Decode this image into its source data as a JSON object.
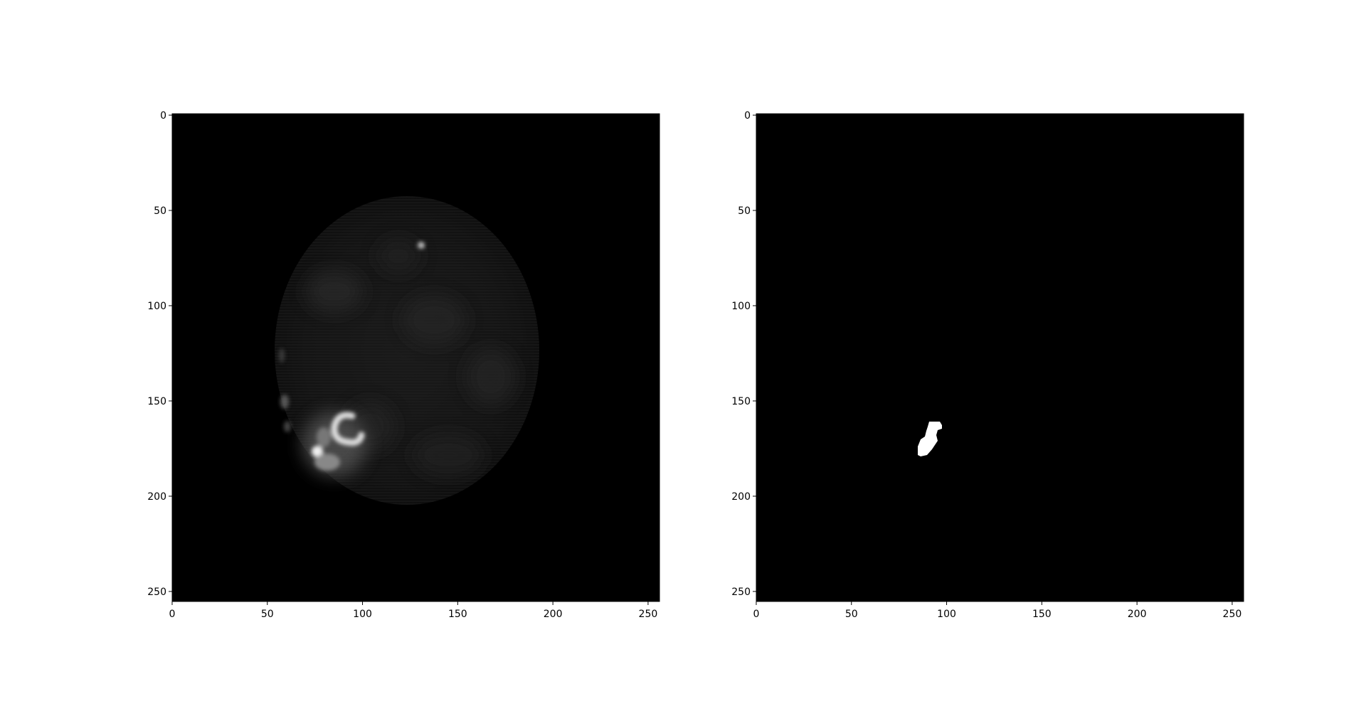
{
  "panels": [
    {
      "name": "left-image-panel",
      "image": "grayscale-scan-slice",
      "xlim": [
        0,
        256
      ],
      "ylim": [
        256,
        0
      ],
      "xticks": [
        {
          "value": 0,
          "label": "0"
        },
        {
          "value": 50,
          "label": "50"
        },
        {
          "value": 100,
          "label": "100"
        },
        {
          "value": 150,
          "label": "150"
        },
        {
          "value": 200,
          "label": "200"
        },
        {
          "value": 250,
          "label": "250"
        }
      ],
      "yticks": [
        {
          "value": 0,
          "label": "0"
        },
        {
          "value": 50,
          "label": "50"
        },
        {
          "value": 100,
          "label": "100"
        },
        {
          "value": 150,
          "label": "150"
        },
        {
          "value": 200,
          "label": "200"
        },
        {
          "value": 250,
          "label": "250"
        }
      ]
    },
    {
      "name": "right-mask-panel",
      "image": "binary-segmentation-mask",
      "xlim": [
        0,
        256
      ],
      "ylim": [
        256,
        0
      ],
      "xticks": [
        {
          "value": 0,
          "label": "0"
        },
        {
          "value": 50,
          "label": "50"
        },
        {
          "value": 100,
          "label": "100"
        },
        {
          "value": 150,
          "label": "150"
        },
        {
          "value": 200,
          "label": "200"
        },
        {
          "value": 250,
          "label": "250"
        }
      ],
      "yticks": [
        {
          "value": 0,
          "label": "0"
        },
        {
          "value": 50,
          "label": "50"
        },
        {
          "value": 100,
          "label": "100"
        },
        {
          "value": 150,
          "label": "150"
        },
        {
          "value": 200,
          "label": "200"
        },
        {
          "value": 250,
          "label": "250"
        }
      ]
    }
  ]
}
